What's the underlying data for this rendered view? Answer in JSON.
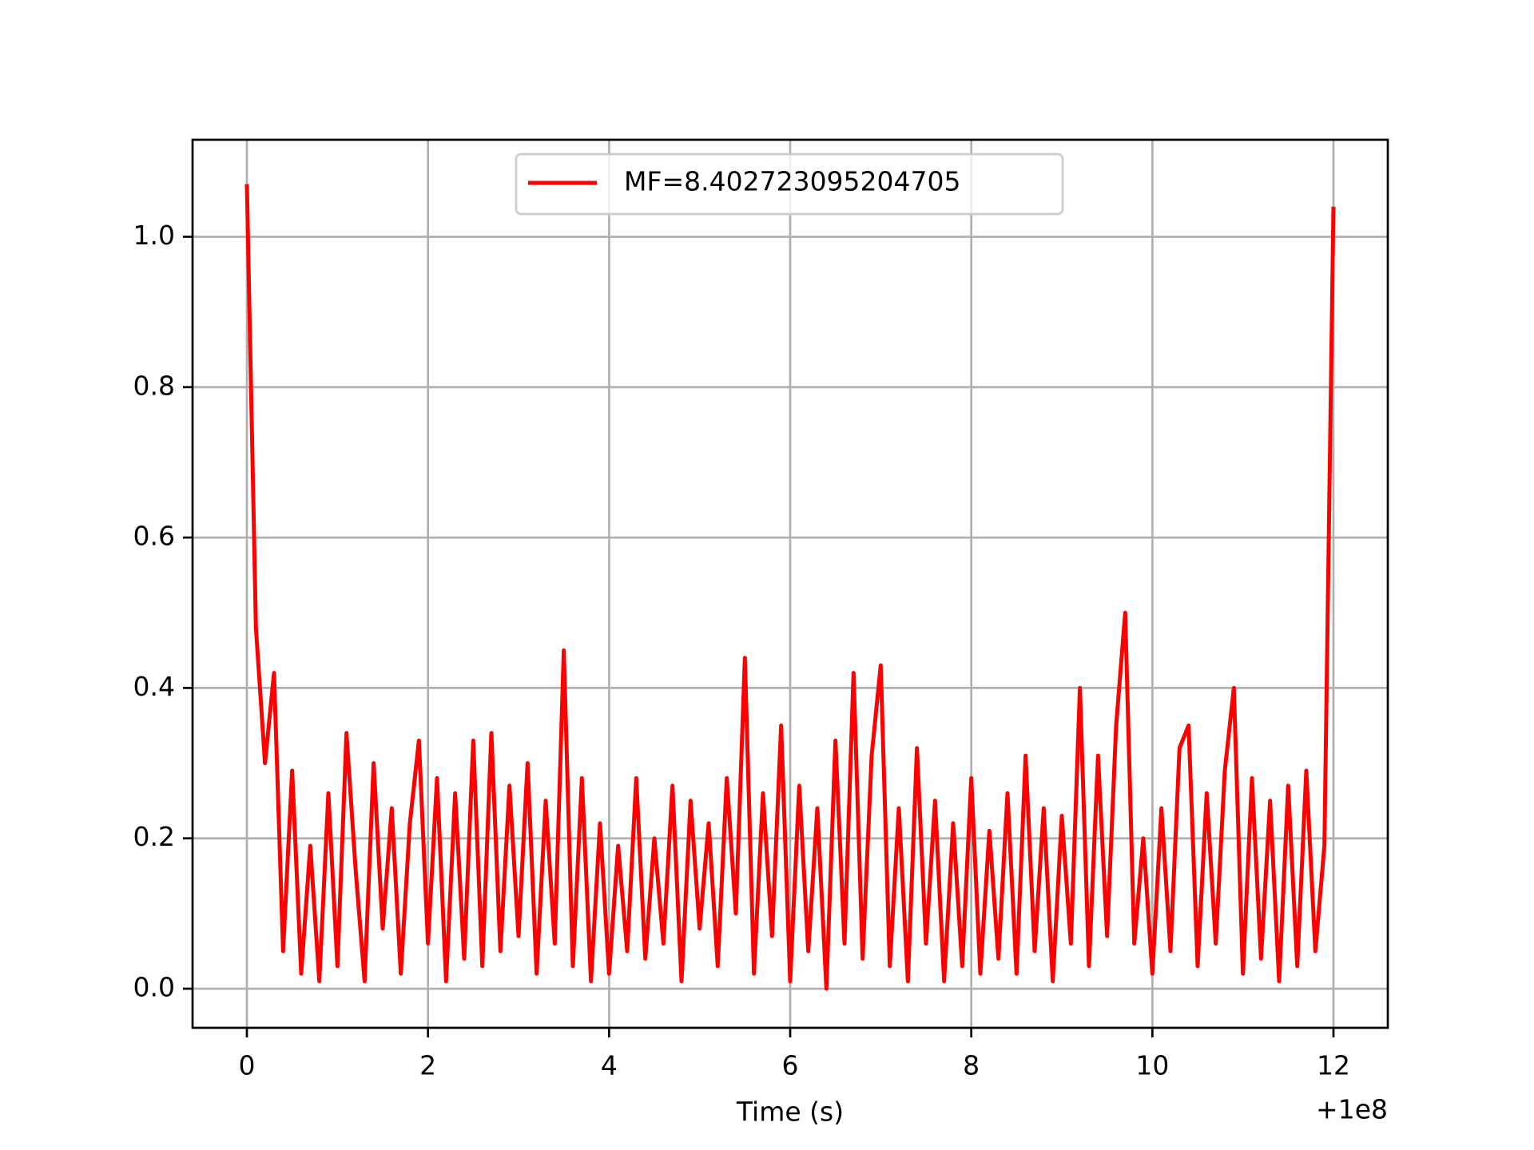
{
  "chart_data": {
    "type": "line",
    "x": [
      0,
      0.1,
      0.2,
      0.3,
      0.4,
      0.5,
      0.6,
      0.7,
      0.8,
      0.9,
      1,
      1.1,
      1.2,
      1.3,
      1.4,
      1.5,
      1.6,
      1.7,
      1.8,
      1.9,
      2,
      2.1,
      2.2,
      2.3,
      2.4,
      2.5,
      2.6,
      2.7,
      2.8,
      2.9,
      3,
      3.1,
      3.2,
      3.3,
      3.4,
      3.5,
      3.6,
      3.7,
      3.8,
      3.9,
      4,
      4.1,
      4.2,
      4.3,
      4.4,
      4.5,
      4.6,
      4.7,
      4.8,
      4.9,
      5,
      5.1,
      5.2,
      5.3,
      5.4,
      5.5,
      5.6,
      5.7,
      5.8,
      5.9,
      6,
      6.1,
      6.2,
      6.3,
      6.4,
      6.5,
      6.6,
      6.7,
      6.8,
      6.9,
      7,
      7.1,
      7.2,
      7.3,
      7.4,
      7.5,
      7.6,
      7.7,
      7.8,
      7.9,
      8,
      8.1,
      8.2,
      8.3,
      8.4,
      8.5,
      8.6,
      8.7,
      8.8,
      8.9,
      9,
      9.1,
      9.2,
      9.3,
      9.4,
      9.5,
      9.6,
      9.7,
      9.8,
      9.9,
      10,
      10.1,
      10.2,
      10.3,
      10.4,
      10.5,
      10.6,
      10.7,
      10.8,
      10.9,
      11,
      11.1,
      11.2,
      11.3,
      11.4,
      11.5,
      11.6,
      11.7,
      11.8,
      11.9,
      12
    ],
    "series": [
      {
        "name": "MF=8.402723095204705",
        "color": "#ff0000",
        "values": [
          1.07,
          0.48,
          0.3,
          0.42,
          0.05,
          0.29,
          0.02,
          0.19,
          0.01,
          0.26,
          0.03,
          0.34,
          0.16,
          0.01,
          0.3,
          0.08,
          0.24,
          0.02,
          0.22,
          0.33,
          0.06,
          0.28,
          0.01,
          0.26,
          0.04,
          0.33,
          0.03,
          0.34,
          0.05,
          0.27,
          0.07,
          0.3,
          0.02,
          0.25,
          0.06,
          0.45,
          0.03,
          0.28,
          0.01,
          0.22,
          0.02,
          0.19,
          0.05,
          0.28,
          0.04,
          0.2,
          0.06,
          0.27,
          0.01,
          0.25,
          0.08,
          0.22,
          0.03,
          0.28,
          0.1,
          0.44,
          0.02,
          0.26,
          0.07,
          0.35,
          0.01,
          0.27,
          0.05,
          0.24,
          0.0,
          0.33,
          0.06,
          0.42,
          0.04,
          0.31,
          0.43,
          0.03,
          0.24,
          0.01,
          0.32,
          0.06,
          0.25,
          0.01,
          0.22,
          0.03,
          0.28,
          0.02,
          0.21,
          0.04,
          0.26,
          0.02,
          0.31,
          0.05,
          0.24,
          0.01,
          0.23,
          0.06,
          0.4,
          0.03,
          0.31,
          0.07,
          0.35,
          0.5,
          0.06,
          0.2,
          0.02,
          0.24,
          0.05,
          0.32,
          0.35,
          0.03,
          0.26,
          0.06,
          0.29,
          0.4,
          0.02,
          0.28,
          0.04,
          0.25,
          0.01,
          0.27,
          0.03,
          0.29,
          0.05,
          0.19,
          1.04
        ]
      }
    ],
    "xlabel": "Time (s)",
    "x_offset_label": "+1e8",
    "xlim": [
      -0.6,
      12.6
    ],
    "xticks": [
      0,
      2,
      4,
      6,
      8,
      10,
      12
    ],
    "ylim": [
      -0.052,
      1.129
    ],
    "yticks": [
      {
        "value": 0,
        "label": "0.0"
      },
      {
        "value": 0.2,
        "label": "0.2"
      },
      {
        "value": 0.4,
        "label": "0.4"
      },
      {
        "value": 0.6,
        "label": "0.6"
      },
      {
        "value": 0.8,
        "label": "0.8"
      },
      {
        "value": 1,
        "label": "1.0"
      }
    ],
    "grid": true,
    "legend": "upper center"
  }
}
